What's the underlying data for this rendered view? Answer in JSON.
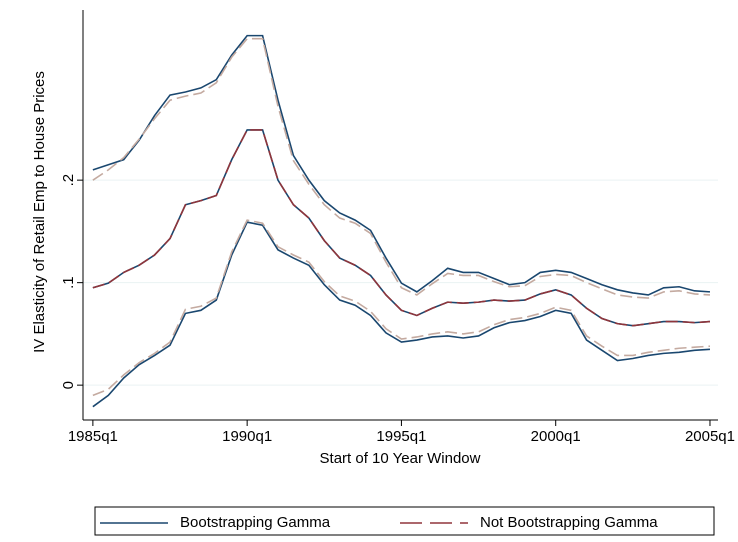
{
  "chart_data": {
    "type": "line",
    "y_label": "IV Elasticity of Retail Emp to House Prices",
    "x_label": "Start of 10 Year Window",
    "x": [
      1985,
      1985.5,
      1986,
      1986.5,
      1987,
      1987.5,
      1988,
      1988.5,
      1989,
      1989.5,
      1990,
      1990.5,
      1991,
      1991.5,
      1992,
      1992.5,
      1993,
      1993.5,
      1994,
      1994.5,
      1995,
      1995.5,
      1996,
      1996.5,
      1997,
      1997.5,
      1998,
      1998.5,
      1999,
      1999.5,
      2000,
      2000.5,
      2001,
      2001.5,
      2002,
      2002.5,
      2003,
      2003.5,
      2004,
      2004.5,
      2005
    ],
    "xlim": [
      1984.68,
      2005.26
    ],
    "xticks": [
      {
        "value": 1985,
        "label": "1985q1"
      },
      {
        "value": 1990,
        "label": "1990q1"
      },
      {
        "value": 1995,
        "label": "1995q1"
      },
      {
        "value": 2000,
        "label": "2000q1"
      },
      {
        "value": 2005,
        "label": "2005q1"
      }
    ],
    "ylim": [
      -0.034,
      0.366
    ],
    "yticks": [
      0,
      {
        "value": 0.1,
        "label": ".1"
      },
      {
        "value": 0.2,
        "label": ".2"
      }
    ],
    "grid": true,
    "legend_position": "bottom",
    "series": [
      {
        "name": "Bootstrapping Gamma",
        "color": "#1a476f",
        "dash": false,
        "ci_color": "#1a476f",
        "values": [
          0.095,
          0.0995,
          0.11,
          0.117,
          0.127,
          0.143,
          0.176,
          0.18,
          0.185,
          0.22,
          0.249,
          0.249,
          0.2,
          0.176,
          0.163,
          0.141,
          0.124,
          0.117,
          0.107,
          0.088,
          0.073,
          0.068,
          0.075,
          0.081,
          0.08,
          0.081,
          0.083,
          0.082,
          0.083,
          0.089,
          0.093,
          0.088,
          0.075,
          0.065,
          0.06,
          0.058,
          0.06,
          0.062,
          0.062,
          0.061,
          0.062
        ],
        "upper": [
          0.21,
          0.215,
          0.22,
          0.239,
          0.263,
          0.283,
          0.286,
          0.29,
          0.298,
          0.322,
          0.341,
          0.341,
          0.278,
          0.224,
          0.2,
          0.18,
          0.168,
          0.161,
          0.151,
          0.124,
          0.0995,
          0.091,
          0.102,
          0.114,
          0.11,
          0.11,
          0.104,
          0.098,
          0.1,
          0.11,
          0.112,
          0.11,
          0.104,
          0.098,
          0.093,
          0.09,
          0.088,
          0.095,
          0.096,
          0.092,
          0.091
        ],
        "lower": [
          -0.021,
          -0.01,
          0.007,
          0.02,
          0.029,
          0.039,
          0.07,
          0.073,
          0.083,
          0.127,
          0.159,
          0.156,
          0.132,
          0.124,
          0.117,
          0.098,
          0.083,
          0.078,
          0.068,
          0.051,
          0.042,
          0.044,
          0.047,
          0.048,
          0.046,
          0.048,
          0.056,
          0.061,
          0.063,
          0.067,
          0.073,
          0.07,
          0.044,
          0.034,
          0.024,
          0.026,
          0.029,
          0.031,
          0.032,
          0.034,
          0.035
        ]
      },
      {
        "name": "Not Bootstrapping Gamma",
        "color": "#90353b",
        "dash": true,
        "ci_color": "#c4aaa0",
        "values": [
          0.095,
          0.0995,
          0.11,
          0.117,
          0.127,
          0.143,
          0.176,
          0.18,
          0.185,
          0.22,
          0.249,
          0.249,
          0.2,
          0.176,
          0.163,
          0.141,
          0.124,
          0.117,
          0.107,
          0.088,
          0.073,
          0.068,
          0.075,
          0.081,
          0.08,
          0.081,
          0.083,
          0.082,
          0.083,
          0.089,
          0.093,
          0.088,
          0.075,
          0.065,
          0.06,
          0.058,
          0.06,
          0.062,
          0.062,
          0.061,
          0.062
        ],
        "upper": [
          0.2,
          0.21,
          0.222,
          0.24,
          0.26,
          0.278,
          0.282,
          0.285,
          0.295,
          0.32,
          0.338,
          0.338,
          0.272,
          0.219,
          0.196,
          0.176,
          0.163,
          0.158,
          0.148,
          0.12,
          0.095,
          0.088,
          0.099,
          0.109,
          0.107,
          0.107,
          0.101,
          0.096,
          0.097,
          0.106,
          0.108,
          0.107,
          0.1,
          0.094,
          0.088,
          0.086,
          0.085,
          0.091,
          0.092,
          0.089,
          0.088
        ],
        "lower": [
          -0.01,
          -0.004,
          0.01,
          0.022,
          0.031,
          0.042,
          0.074,
          0.077,
          0.085,
          0.13,
          0.161,
          0.158,
          0.135,
          0.127,
          0.12,
          0.101,
          0.087,
          0.082,
          0.072,
          0.055,
          0.045,
          0.047,
          0.05,
          0.052,
          0.05,
          0.052,
          0.059,
          0.064,
          0.066,
          0.07,
          0.076,
          0.073,
          0.048,
          0.038,
          0.029,
          0.029,
          0.032,
          0.034,
          0.036,
          0.037,
          0.038
        ]
      }
    ]
  }
}
